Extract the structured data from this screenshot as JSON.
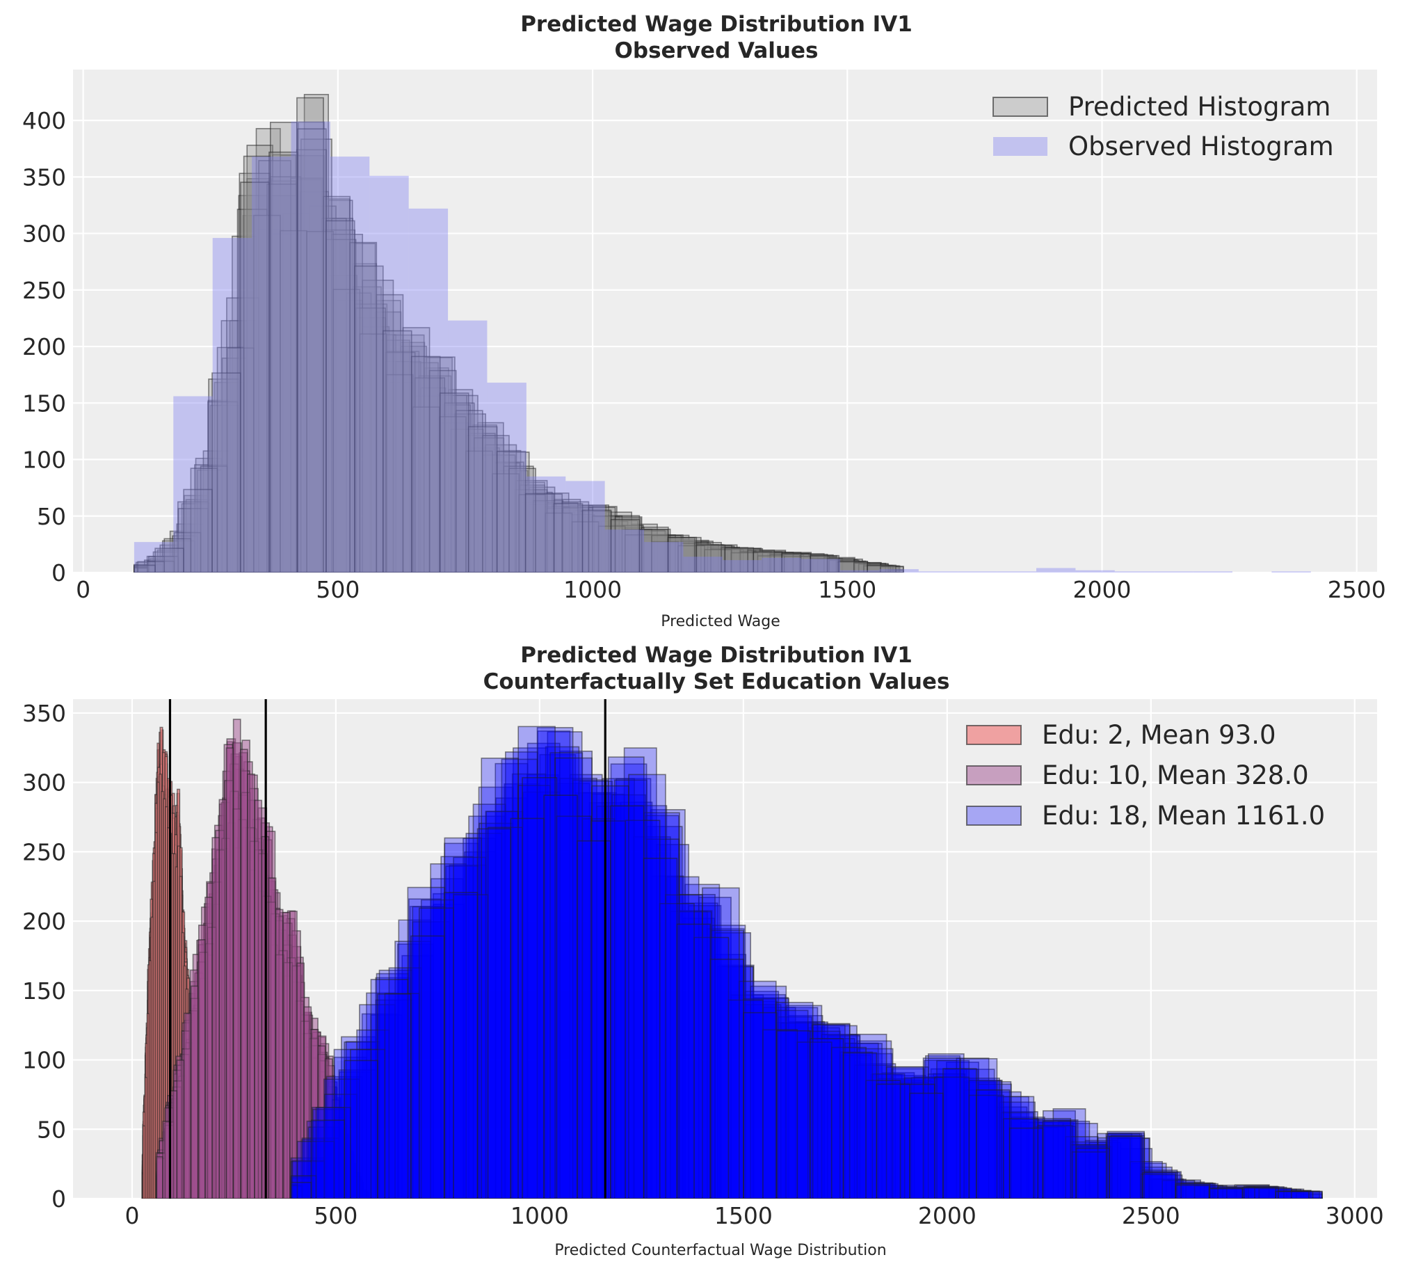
{
  "chart_data": [
    {
      "type": "bar",
      "title_line1": "Predicted Wage Distribution IV1",
      "title_line2": "Observed Values",
      "xlabel": "Predicted Wage",
      "ylabel": "",
      "xlim": [
        -20,
        2540
      ],
      "ylim": [
        0,
        445
      ],
      "xticks": [
        0,
        500,
        1000,
        1500,
        2000,
        2500
      ],
      "yticks": [
        0,
        50,
        100,
        150,
        200,
        250,
        300,
        350,
        400
      ],
      "grid": true,
      "legend_position": "upper right",
      "series": [
        {
          "name": "Predicted Histogram",
          "kind": "stacked_histograms",
          "color": "#8c8c8c",
          "fill_opacity": 0.35,
          "edge_color": "#222222",
          "envelope": {
            "x": [
              100,
              150,
              200,
              250,
              300,
              330,
              360,
              400,
              440,
              470,
              500,
              550,
              600,
              650,
              700,
              750,
              800,
              850,
              900,
              950,
              1000,
              1050,
              1100,
              1150,
              1200,
              1250,
              1300,
              1350,
              1400,
              1450,
              1500,
              1550,
              1600,
              1610
            ],
            "y": [
              5,
              12,
              40,
              110,
              230,
              360,
              415,
              380,
              425,
              405,
              345,
              290,
              245,
              210,
              190,
              155,
              130,
              105,
              75,
              65,
              60,
              55,
              42,
              35,
              30,
              25,
              22,
              20,
              18,
              16,
              12,
              8,
              5,
              0
            ]
          }
        },
        {
          "name": "Observed Histogram",
          "kind": "histogram",
          "color": "#7f7ff0",
          "fill_opacity": 0.4,
          "bins": [
            {
              "x0": 100,
              "x1": 177,
              "y": 27
            },
            {
              "x0": 177,
              "x1": 254,
              "y": 156
            },
            {
              "x0": 254,
              "x1": 331,
              "y": 296
            },
            {
              "x0": 331,
              "x1": 408,
              "y": 368
            },
            {
              "x0": 408,
              "x1": 485,
              "y": 399
            },
            {
              "x0": 485,
              "x1": 562,
              "y": 368
            },
            {
              "x0": 562,
              "x1": 639,
              "y": 351
            },
            {
              "x0": 639,
              "x1": 716,
              "y": 322
            },
            {
              "x0": 716,
              "x1": 793,
              "y": 223
            },
            {
              "x0": 793,
              "x1": 870,
              "y": 168
            },
            {
              "x0": 870,
              "x1": 947,
              "y": 85
            },
            {
              "x0": 947,
              "x1": 1024,
              "y": 81
            },
            {
              "x0": 1024,
              "x1": 1101,
              "y": 38
            },
            {
              "x0": 1101,
              "x1": 1178,
              "y": 27
            },
            {
              "x0": 1178,
              "x1": 1255,
              "y": 14
            },
            {
              "x0": 1255,
              "x1": 1332,
              "y": 11
            },
            {
              "x0": 1332,
              "x1": 1409,
              "y": 13
            },
            {
              "x0": 1409,
              "x1": 1486,
              "y": 12
            },
            {
              "x0": 1486,
              "x1": 1563,
              "y": 2
            },
            {
              "x0": 1563,
              "x1": 1640,
              "y": 3
            },
            {
              "x0": 1640,
              "x1": 1717,
              "y": 1
            },
            {
              "x0": 1717,
              "x1": 1794,
              "y": 1
            },
            {
              "x0": 1794,
              "x1": 1871,
              "y": 1
            },
            {
              "x0": 1871,
              "x1": 1948,
              "y": 4
            },
            {
              "x0": 1948,
              "x1": 2025,
              "y": 2
            },
            {
              "x0": 2025,
              "x1": 2102,
              "y": 1
            },
            {
              "x0": 2102,
              "x1": 2179,
              "y": 1
            },
            {
              "x0": 2179,
              "x1": 2256,
              "y": 1
            },
            {
              "x0": 2333,
              "x1": 2410,
              "y": 1
            }
          ]
        }
      ]
    },
    {
      "type": "bar",
      "title_line1": "Predicted Wage Distribution IV1",
      "title_line2": "Counterfactually Set Education Values",
      "xlabel": "Predicted Counterfactual Wage Distribution",
      "ylabel": "",
      "xlim": [
        -145,
        3055
      ],
      "ylim": [
        0,
        360
      ],
      "xticks": [
        0,
        500,
        1000,
        1500,
        2000,
        2500,
        3000
      ],
      "yticks": [
        0,
        50,
        100,
        150,
        200,
        250,
        300,
        350
      ],
      "grid": true,
      "legend_position": "upper right",
      "mean_lines": [
        93.0,
        328.0,
        1161.0
      ],
      "series": [
        {
          "name": "Edu: 2, Mean 93.0",
          "kind": "stacked_histograms",
          "color": "#f08080",
          "fill_opacity": 0.7,
          "edge_color": "#222222",
          "envelope": {
            "x": [
              25,
              35,
              45,
              55,
              65,
              75,
              85,
              95,
              105,
              115,
              125,
              135,
              145,
              155,
              165,
              175
            ],
            "y": [
              20,
              110,
              200,
              260,
              340,
              335,
              320,
              300,
              280,
              295,
              210,
              175,
              115,
              70,
              40,
              0
            ]
          }
        },
        {
          "name": "Edu: 10, Mean 328.0",
          "kind": "stacked_histograms",
          "color": "#a05090",
          "fill_opacity": 0.5,
          "edge_color": "#222222",
          "envelope": {
            "x": [
              60,
              100,
              140,
              180,
              200,
              220,
              240,
              260,
              280,
              300,
              320,
              340,
              360,
              380,
              400,
              420,
              440,
              460,
              480,
              500,
              520,
              540,
              560,
              580
            ],
            "y": [
              20,
              80,
              140,
              210,
              245,
              290,
              340,
              340,
              325,
              295,
              285,
              255,
              215,
              205,
              205,
              150,
              130,
              120,
              110,
              75,
              50,
              25,
              10,
              0
            ]
          }
        },
        {
          "name": "Edu: 18, Mean 1161.0",
          "kind": "stacked_histograms",
          "color": "#0000ff",
          "fill_opacity": 0.3,
          "edge_color": "#222222",
          "envelope": {
            "x": [
              390,
              450,
              500,
              550,
              600,
              650,
              700,
              750,
              800,
              850,
              900,
              950,
              1000,
              1050,
              1100,
              1150,
              1200,
              1250,
              1300,
              1350,
              1400,
              1450,
              1500,
              1550,
              1600,
              1650,
              1700,
              1750,
              1800,
              1850,
              1900,
              1950,
              2000,
              2050,
              2100,
              2150,
              2200,
              2250,
              2300,
              2350,
              2400,
              2450,
              2500,
              2550,
              2600,
              2650,
              2700,
              2750,
              2800,
              2850,
              2900,
              2920
            ],
            "y": [
              10,
              40,
              80,
              110,
              140,
              175,
              200,
              240,
              250,
              275,
              310,
              330,
              340,
              340,
              335,
              305,
              320,
              320,
              290,
              230,
              220,
              220,
              160,
              155,
              145,
              140,
              135,
              125,
              120,
              100,
              95,
              90,
              105,
              105,
              90,
              80,
              60,
              55,
              70,
              40,
              50,
              50,
              25,
              15,
              12,
              10,
              8,
              10,
              8,
              6,
              5,
              0
            ]
          }
        }
      ]
    }
  ]
}
